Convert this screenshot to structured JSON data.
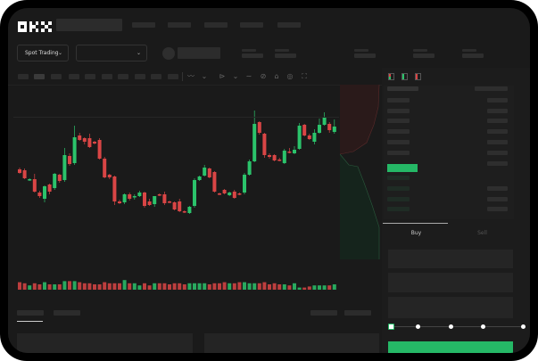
{
  "header": {
    "logo": "OKX"
  },
  "market_selector": {
    "label": "Spot Trading",
    "chevron": "chevron-down-icon"
  },
  "pair_selector": {
    "chevron": "chevron-down-icon"
  },
  "trade_panel": {
    "tabs": [
      {
        "label": "Buy",
        "active": true
      },
      {
        "label": "Sell",
        "active": false
      }
    ],
    "leverage_steps": 5,
    "selected_step": 0
  },
  "colors": {
    "up": "#2bc36b",
    "down": "#d94545",
    "accent": "#25b866",
    "background": "#1a1a1a"
  },
  "chart_data": {
    "type": "candlestick",
    "candles": [
      [
        119,
        121,
        114,
        115
      ],
      [
        118,
        120,
        108,
        109
      ],
      [
        107,
        109,
        106,
        108
      ],
      [
        108,
        114,
        93,
        94
      ],
      [
        93,
        95,
        87,
        89
      ],
      [
        86,
        101,
        82,
        100
      ],
      [
        102,
        103,
        91,
        94
      ],
      [
        98,
        115,
        96,
        114
      ],
      [
        113,
        114,
        104,
        106
      ],
      [
        107,
        143,
        105,
        135
      ],
      [
        134,
        137,
        123,
        125
      ],
      [
        126,
        168,
        124,
        155
      ],
      [
        157,
        160,
        151,
        152
      ],
      [
        154,
        155,
        147,
        150
      ],
      [
        154,
        159,
        143,
        144
      ],
      [
        150,
        151,
        147,
        148
      ],
      [
        152,
        154,
        130,
        131
      ],
      [
        131,
        133,
        109,
        110
      ],
      [
        113,
        114,
        108,
        110
      ],
      [
        111,
        112,
        79,
        83
      ],
      [
        83,
        85,
        80,
        81
      ],
      [
        82,
        92,
        80,
        91
      ],
      [
        91,
        93,
        84,
        86
      ],
      [
        88,
        91,
        85,
        89
      ],
      [
        89,
        95,
        88,
        93
      ],
      [
        93,
        94,
        76,
        78
      ],
      [
        83,
        86,
        78,
        79
      ],
      [
        80,
        89,
        77,
        89
      ],
      [
        91,
        92,
        89,
        90
      ],
      [
        91,
        94,
        79,
        81
      ],
      [
        83,
        84,
        81,
        82
      ],
      [
        82,
        83,
        73,
        74
      ],
      [
        83,
        86,
        71,
        72
      ],
      [
        72,
        73,
        70,
        71
      ],
      [
        70,
        78,
        69,
        77
      ],
      [
        78,
        109,
        76,
        107
      ],
      [
        107,
        112,
        106,
        111
      ],
      [
        112,
        124,
        111,
        121
      ],
      [
        120,
        121,
        109,
        110
      ],
      [
        116,
        117,
        93,
        94
      ],
      [
        92,
        93,
        90,
        91
      ],
      [
        96,
        97,
        91,
        92
      ],
      [
        90,
        94,
        89,
        93
      ],
      [
        94,
        96,
        86,
        87
      ],
      [
        92,
        93,
        90,
        91
      ],
      [
        93,
        115,
        91,
        113
      ],
      [
        113,
        130,
        112,
        128
      ],
      [
        128,
        185,
        127,
        170
      ],
      [
        172,
        173,
        158,
        160
      ],
      [
        159,
        160,
        132,
        135
      ],
      [
        135,
        137,
        131,
        133
      ],
      [
        135,
        136,
        128,
        129
      ],
      [
        130,
        132,
        128,
        129
      ],
      [
        126,
        142,
        125,
        140
      ],
      [
        139,
        143,
        137,
        138
      ],
      [
        137,
        145,
        136,
        141
      ],
      [
        142,
        171,
        141,
        168
      ],
      [
        169,
        170,
        156,
        157
      ],
      [
        157,
        159,
        152,
        153
      ],
      [
        150,
        164,
        147,
        160
      ],
      [
        160,
        176,
        159,
        169
      ],
      [
        169,
        183,
        168,
        178
      ],
      [
        170,
        172,
        160,
        163
      ],
      [
        161,
        175,
        159,
        167
      ]
    ],
    "volume": [
      7,
      6,
      4,
      6,
      5,
      7,
      5,
      5,
      5,
      8,
      8,
      8,
      7,
      6,
      6,
      5,
      5,
      7,
      6,
      6,
      6,
      9,
      6,
      6,
      4,
      6,
      4,
      6,
      6,
      6,
      5,
      6,
      6,
      5,
      6,
      6,
      6,
      6,
      5,
      6,
      6,
      7,
      6,
      6,
      7,
      7,
      6,
      6,
      6,
      7,
      5,
      6,
      5,
      5,
      4,
      6,
      2,
      2,
      3,
      4,
      4,
      4,
      4,
      5
    ],
    "x_axis": "none",
    "y_axis": "none",
    "grid": true
  }
}
